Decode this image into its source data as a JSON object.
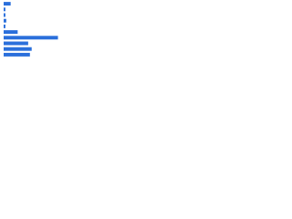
{
  "chart_data": {
    "type": "bar",
    "orientation": "horizontal",
    "categories": [
      null,
      null,
      null,
      null,
      null,
      null,
      null,
      null,
      null,
      null
    ],
    "values": [
      8,
      2,
      2,
      3,
      2,
      16,
      62,
      28,
      32,
      30
    ],
    "color": "#2a6fdb",
    "xlim": [
      0,
      100
    ]
  }
}
